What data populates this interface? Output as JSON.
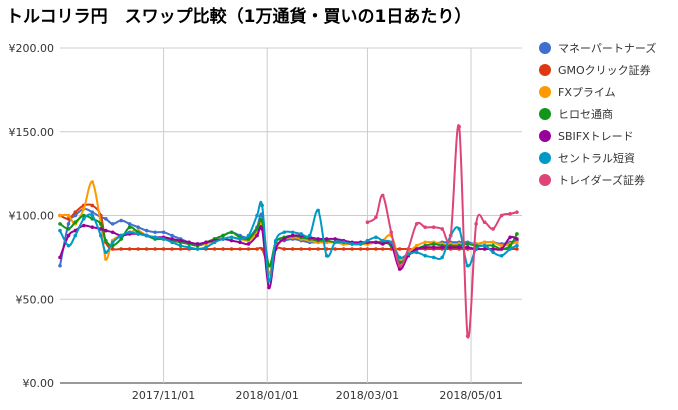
{
  "chart_data": {
    "type": "line",
    "title": "トルコリラ円　スワップ比較（1万通貨・買いの1日あたり）",
    "xlabel": "",
    "ylabel": "",
    "ylim": [
      0,
      200
    ],
    "y_ticks": [
      "¥0.00",
      "¥50.00",
      "¥100.00",
      "¥150.00",
      "¥200.00"
    ],
    "y_tick_values": [
      0,
      50,
      100,
      150,
      200
    ],
    "x_ticks": [
      "2017/11/01",
      "2018/01/01",
      "2018/03/01",
      "2018/05/01"
    ],
    "x_range": [
      "2017-09-01",
      "2018-05-31"
    ],
    "grid": true,
    "legend_position": "right",
    "x": [
      "2017-09-01",
      "2017-09-06",
      "2017-09-10",
      "2017-09-15",
      "2017-09-20",
      "2017-09-25",
      "2017-09-28",
      "2017-10-02",
      "2017-10-07",
      "2017-10-12",
      "2017-10-17",
      "2017-10-22",
      "2017-10-27",
      "2017-11-01",
      "2017-11-06",
      "2017-11-11",
      "2017-11-16",
      "2017-11-21",
      "2017-11-26",
      "2017-12-01",
      "2017-12-06",
      "2017-12-11",
      "2017-12-16",
      "2017-12-21",
      "2017-12-26",
      "2017-12-29",
      "2018-01-02",
      "2018-01-06",
      "2018-01-11",
      "2018-01-16",
      "2018-01-21",
      "2018-01-26",
      "2018-01-31",
      "2018-02-05",
      "2018-02-10",
      "2018-02-15",
      "2018-02-20",
      "2018-02-25",
      "2018-03-01",
      "2018-03-06",
      "2018-03-10",
      "2018-03-15",
      "2018-03-20",
      "2018-03-25",
      "2018-03-30",
      "2018-04-04",
      "2018-04-09",
      "2018-04-14",
      "2018-04-19",
      "2018-04-24",
      "2018-04-29",
      "2018-05-04",
      "2018-05-09",
      "2018-05-14",
      "2018-05-19",
      "2018-05-24",
      "2018-05-28"
    ],
    "series": [
      {
        "name": "マネーパートナーズ",
        "color": "#3f6fd1",
        "values": [
          70,
          95,
          100,
          104,
          102,
          99,
          98,
          95,
          97,
          95,
          93,
          91,
          90,
          90,
          88,
          86,
          84,
          83,
          84,
          86,
          88,
          90,
          88,
          87,
          93,
          100,
          65,
          84,
          85,
          86,
          85,
          84,
          84,
          84,
          84,
          83,
          83,
          83,
          83,
          84,
          84,
          82,
          72,
          77,
          80,
          82,
          83,
          84,
          84,
          84,
          84,
          83,
          84,
          84,
          83,
          84,
          85
        ]
      },
      {
        "name": "GMOクリック証券",
        "color": "#dc3912",
        "values": [
          100,
          98,
          102,
          106,
          106,
          100,
          84,
          80,
          80,
          80,
          80,
          80,
          80,
          80,
          80,
          80,
          80,
          80,
          80,
          80,
          80,
          80,
          80,
          80,
          80,
          80,
          70,
          80,
          80,
          80,
          80,
          80,
          80,
          80,
          80,
          80,
          80,
          80,
          80,
          80,
          80,
          80,
          80,
          80,
          80,
          80,
          80,
          80,
          80,
          80,
          80,
          80,
          80,
          80,
          80,
          80,
          80
        ]
      },
      {
        "name": "FXプライム",
        "color": "#ff9900",
        "values": [
          100,
          100,
          95,
          104,
          120,
          95,
          74,
          85,
          88,
          90,
          91,
          88,
          87,
          86,
          85,
          84,
          83,
          82,
          83,
          85,
          86,
          87,
          86,
          85,
          90,
          95,
          65,
          80,
          86,
          87,
          86,
          85,
          84,
          84,
          84,
          83,
          83,
          83,
          83,
          84,
          85,
          88,
          74,
          78,
          82,
          84,
          84,
          83,
          83,
          83,
          83,
          83,
          84,
          84,
          82,
          83,
          84
        ]
      },
      {
        "name": "ヒロセ通商",
        "color": "#109618",
        "values": [
          95,
          92,
          96,
          100,
          98,
          95,
          85,
          82,
          86,
          93,
          90,
          88,
          86,
          86,
          85,
          84,
          83,
          82,
          84,
          86,
          88,
          90,
          87,
          86,
          92,
          97,
          70,
          84,
          87,
          88,
          87,
          86,
          85,
          85,
          84,
          84,
          83,
          83,
          84,
          84,
          84,
          82,
          72,
          76,
          80,
          82,
          83,
          82,
          82,
          82,
          83,
          82,
          82,
          82,
          80,
          82,
          89
        ]
      },
      {
        "name": "SBIFXトレード",
        "color": "#990099",
        "values": [
          75,
          88,
          91,
          94,
          93,
          92,
          91,
          90,
          88,
          89,
          89,
          88,
          87,
          87,
          86,
          85,
          84,
          83,
          84,
          85,
          86,
          85,
          84,
          83,
          88,
          92,
          57,
          80,
          86,
          88,
          88,
          87,
          86,
          86,
          86,
          85,
          84,
          84,
          84,
          84,
          83,
          83,
          68,
          76,
          80,
          81,
          81,
          81,
          81,
          81,
          81,
          80,
          80,
          80,
          80,
          87,
          86
        ]
      },
      {
        "name": "セントラル短資",
        "color": "#0099c6",
        "values": [
          91,
          82,
          88,
          98,
          100,
          88,
          78,
          84,
          88,
          90,
          89,
          88,
          87,
          86,
          84,
          82,
          81,
          80,
          81,
          84,
          86,
          87,
          86,
          88,
          100,
          106,
          61,
          85,
          90,
          90,
          89,
          88,
          103,
          76,
          84,
          84,
          83,
          83,
          85,
          87,
          85,
          84,
          75,
          77,
          78,
          76,
          75,
          75,
          88,
          92,
          70,
          80,
          82,
          78,
          76,
          80,
          82
        ]
      },
      {
        "name": "トレイダーズ証券",
        "color": "#dd4477",
        "values": [
          null,
          null,
          null,
          null,
          null,
          null,
          null,
          null,
          null,
          null,
          null,
          null,
          null,
          null,
          null,
          null,
          null,
          null,
          null,
          null,
          null,
          null,
          null,
          null,
          null,
          null,
          null,
          null,
          null,
          null,
          null,
          null,
          null,
          null,
          null,
          null,
          null,
          null,
          96,
          99,
          112,
          90,
          70,
          80,
          95,
          93,
          93,
          92,
          88,
          153,
          28,
          95,
          96,
          92,
          100,
          101,
          102
        ]
      }
    ]
  }
}
